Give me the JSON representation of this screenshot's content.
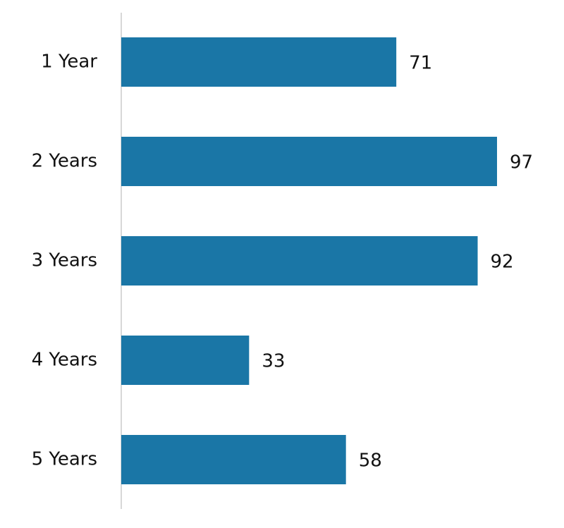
{
  "chart_data": {
    "type": "bar",
    "orientation": "horizontal",
    "categories": [
      "1 Year",
      "2 Years",
      "3 Years",
      "4 Years",
      "5 Years"
    ],
    "values": [
      71,
      97,
      92,
      33,
      58
    ],
    "color": "#1a76a6",
    "grid": false
  }
}
